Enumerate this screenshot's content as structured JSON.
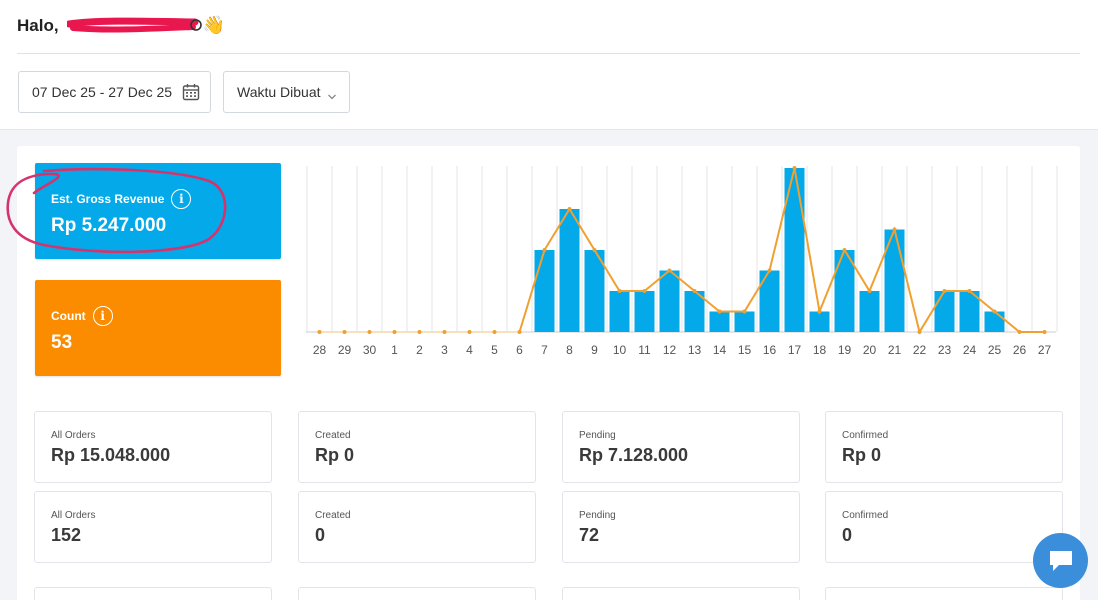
{
  "greeting": {
    "prefix": "Halo,",
    "emoji": "👋"
  },
  "filters": {
    "date_range": "07 Dec 25 - 27 Dec 25",
    "time_mode": "Waktu Dibuat"
  },
  "summary": {
    "revenue_label": "Est. Gross Revenue",
    "revenue_value": "Rp 5.247.000",
    "count_label": "Count",
    "count_value": "53",
    "info_glyph": "i"
  },
  "chart_data": {
    "type": "bar",
    "categories": [
      "28",
      "29",
      "30",
      "1",
      "2",
      "3",
      "4",
      "5",
      "6",
      "7",
      "8",
      "9",
      "10",
      "11",
      "12",
      "13",
      "14",
      "15",
      "16",
      "17",
      "18",
      "19",
      "20",
      "21",
      "22",
      "23",
      "24",
      "25",
      "26",
      "27"
    ],
    "series": [
      {
        "values": [
          0,
          0,
          0,
          0,
          0,
          0,
          0,
          0,
          0,
          4,
          6,
          4,
          2,
          2,
          3,
          2,
          1,
          1,
          3,
          8,
          1,
          4,
          2,
          5,
          0,
          2,
          2,
          1,
          0,
          0
        ],
        "type": "bar"
      },
      {
        "values": [
          0,
          0,
          0,
          0,
          0,
          0,
          0,
          0,
          0,
          4,
          6,
          4,
          2,
          2,
          3,
          2,
          1,
          1,
          3,
          8,
          1,
          4,
          2,
          5,
          0,
          2,
          2,
          1,
          0,
          0
        ],
        "type": "line"
      }
    ],
    "ylim": [
      0,
      8
    ],
    "grid": "vertical",
    "colors": {
      "bar": "#03a9e9",
      "line": "#f0a030",
      "line_faded": "#f5d9a8"
    }
  },
  "stats_revenue": [
    {
      "label": "All Orders",
      "value": "Rp 15.048.000"
    },
    {
      "label": "Created",
      "value": "Rp 0"
    },
    {
      "label": "Pending",
      "value": "Rp 7.128.000"
    },
    {
      "label": "Confirmed",
      "value": "Rp 0"
    }
  ],
  "stats_count": [
    {
      "label": "All Orders",
      "value": "152"
    },
    {
      "label": "Created",
      "value": "0"
    },
    {
      "label": "Pending",
      "value": "72"
    },
    {
      "label": "Confirmed",
      "value": "0"
    }
  ],
  "icons": {
    "calendar": "calendar-icon",
    "dropdown": "chevron-down-icon",
    "chat": "chat-icon",
    "info": "info-icon"
  },
  "colors": {
    "revenue_card": "#03a9e9",
    "count_card": "#fb8c00",
    "chat_button": "#3b8ed9",
    "annotation": "#d6336c"
  }
}
